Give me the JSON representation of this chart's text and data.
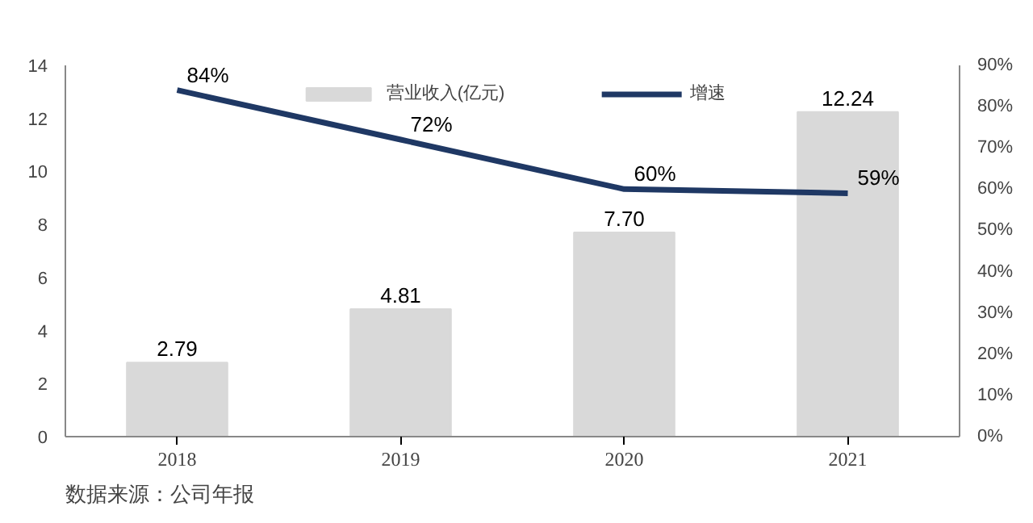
{
  "chart_data": {
    "type": "bar",
    "categories": [
      "2018",
      "2019",
      "2020",
      "2021"
    ],
    "series": [
      {
        "name": "营业收入(亿元)",
        "color": "#d9d9d9",
        "values": [
          2.79,
          4.81,
          7.7,
          12.24
        ],
        "value_labels": [
          "2.79",
          "4.81",
          "7.70",
          "12.24"
        ]
      },
      {
        "name": "增速",
        "type": "line",
        "axis": "y2",
        "color": "#1f3864",
        "values": [
          84,
          72,
          60,
          59
        ],
        "value_labels": [
          "84%",
          "72%",
          "60%",
          "59%"
        ]
      }
    ],
    "ylim": [
      0,
      14
    ],
    "yticks": [
      0,
      2,
      4,
      6,
      8,
      10,
      12,
      14
    ],
    "y2lim": [
      0,
      90
    ],
    "y2ticks": [
      {
        "value": 0,
        "label": "0%"
      },
      {
        "value": 10,
        "label": "10%"
      },
      {
        "value": 20,
        "label": "20%"
      },
      {
        "value": 30,
        "label": "30%"
      },
      {
        "value": 40,
        "label": "40%"
      },
      {
        "value": 50,
        "label": "50%"
      },
      {
        "value": 60,
        "label": "60%"
      },
      {
        "value": 70,
        "label": "70%"
      },
      {
        "value": 80,
        "label": "80%"
      },
      {
        "value": 90,
        "label": "90%"
      }
    ],
    "legend": "top",
    "grid": false,
    "marker": "none",
    "annotations": [
      "数据来源：公司年报"
    ]
  }
}
